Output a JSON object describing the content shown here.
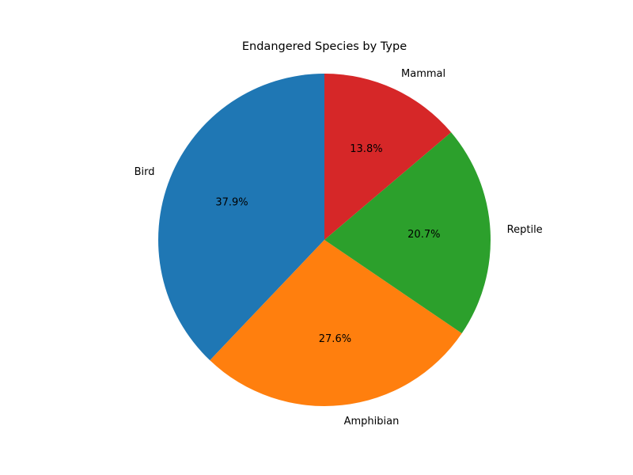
{
  "chart_data": {
    "type": "pie",
    "title": "Endangered Species by Type",
    "categories": [
      "Bird",
      "Amphibian",
      "Reptile",
      "Mammal"
    ],
    "values": [
      37.9,
      27.6,
      20.7,
      13.8
    ],
    "value_labels": [
      "37.9%",
      "27.6%",
      "20.7%",
      "13.8%"
    ],
    "colors": [
      "#1f77b4",
      "#ff7f0e",
      "#2ca02c",
      "#d62728"
    ],
    "start_angle_deg": 90,
    "direction": "counterclockwise",
    "legend": "none"
  }
}
